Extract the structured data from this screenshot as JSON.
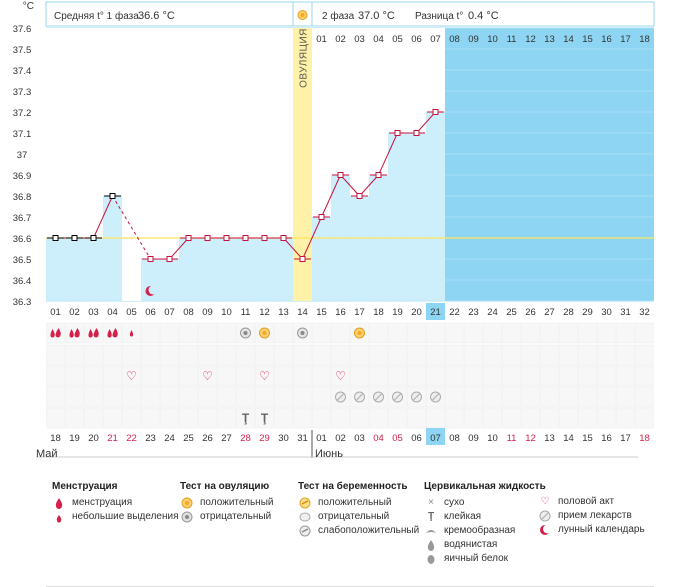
{
  "chart_data": {
    "type": "line",
    "title": "",
    "ylabel": "°C",
    "ylim": [
      36.3,
      37.6
    ],
    "yticks": [
      "36.3",
      "36.4",
      "36.5",
      "36.6",
      "36.7",
      "36.8",
      "36.9",
      "37",
      "37.1",
      "37.2",
      "37.3",
      "37.4",
      "37.5",
      "37.6"
    ],
    "cycle_days": [
      "01",
      "02",
      "03",
      "04",
      "05",
      "06",
      "07",
      "08",
      "09",
      "10",
      "11",
      "12",
      "13",
      "14",
      "15",
      "16",
      "17",
      "18",
      "19",
      "20",
      "21",
      "22",
      "23",
      "24",
      "25",
      "26",
      "27",
      "28",
      "29",
      "30",
      "31",
      "32"
    ],
    "temperatures": [
      36.6,
      36.6,
      36.6,
      36.8,
      null,
      36.5,
      36.5,
      36.6,
      36.6,
      36.6,
      36.6,
      36.6,
      36.6,
      36.5,
      36.7,
      36.9,
      36.8,
      36.9,
      37.1,
      37.1,
      37.2
    ],
    "ovulation_day_index": 13,
    "ovulation_label": "ОВУЛЯЦИЯ",
    "phase1_avg_line": 36.6,
    "header": {
      "phase1_label": "Средняя t° 1 фаза",
      "phase1_value": "36.6 °C",
      "phase2_label": "2 фаза",
      "phase2_value": "37.0 °C",
      "diff_label": "Разница t°",
      "diff_value": "0.4 °C"
    },
    "phase2_day_labels": [
      "01",
      "02",
      "03",
      "04",
      "05",
      "06",
      "07",
      "08",
      "09",
      "10",
      "11",
      "12",
      "13",
      "14",
      "15",
      "16",
      "17",
      "18"
    ],
    "current_day_index": 20,
    "calendar_dates": [
      "18",
      "19",
      "20",
      "21",
      "22",
      "23",
      "24",
      "25",
      "26",
      "27",
      "28",
      "29",
      "30",
      "31",
      "01",
      "02",
      "03",
      "04",
      "05",
      "06",
      "07",
      "08",
      "09",
      "10",
      "11",
      "12",
      "13",
      "14",
      "15",
      "16",
      "17",
      "18"
    ],
    "weekend_dates_idx": [
      3,
      4,
      10,
      11,
      17,
      18,
      24,
      25,
      31
    ],
    "months": [
      "Май",
      "Июнь"
    ],
    "markers": {
      "menstruation": [
        [
          0,
          "big"
        ],
        [
          1,
          "big"
        ],
        [
          2,
          "big"
        ],
        [
          3,
          "big"
        ],
        [
          4,
          "small"
        ]
      ],
      "moon_day": 5,
      "ovulation_test": [
        [
          10,
          "neg"
        ],
        [
          11,
          "pos"
        ],
        [
          13,
          "neg"
        ],
        [
          16,
          "pos"
        ]
      ],
      "intercourse": [
        4,
        8,
        11,
        15
      ],
      "medication": [
        15,
        16,
        17,
        18,
        19,
        20
      ],
      "cervical_sticky": [
        10,
        11
      ]
    },
    "colors": {
      "bg_blue": "#8dd5f2",
      "bar_blue": "#cdeefb",
      "ovulation": "#fff2a8",
      "line": "#c8103e",
      "weekend": "#d5214a",
      "avg_line": "#ffe45c",
      "current_day": "#8dd5f2"
    }
  },
  "legend": {
    "menstruation": {
      "title": "Менструация",
      "items": [
        "менструация",
        "небольшие выделения"
      ]
    },
    "ovulation_test": {
      "title": "Тест на овуляцию",
      "items": [
        "положительный",
        "отрицательный"
      ]
    },
    "pregnancy_test": {
      "title": "Тест на беременность",
      "items": [
        "положительный",
        "отрицательный",
        "слабоположительный"
      ]
    },
    "cervical_fluid": {
      "title": "Цервикальная жидкость",
      "items": [
        "сухо",
        "клейкая",
        "кремообразная",
        "водянистая",
        "яичный белок"
      ]
    },
    "other": {
      "items": [
        "половой акт",
        "прием лекарств",
        "лунный календарь"
      ]
    }
  }
}
